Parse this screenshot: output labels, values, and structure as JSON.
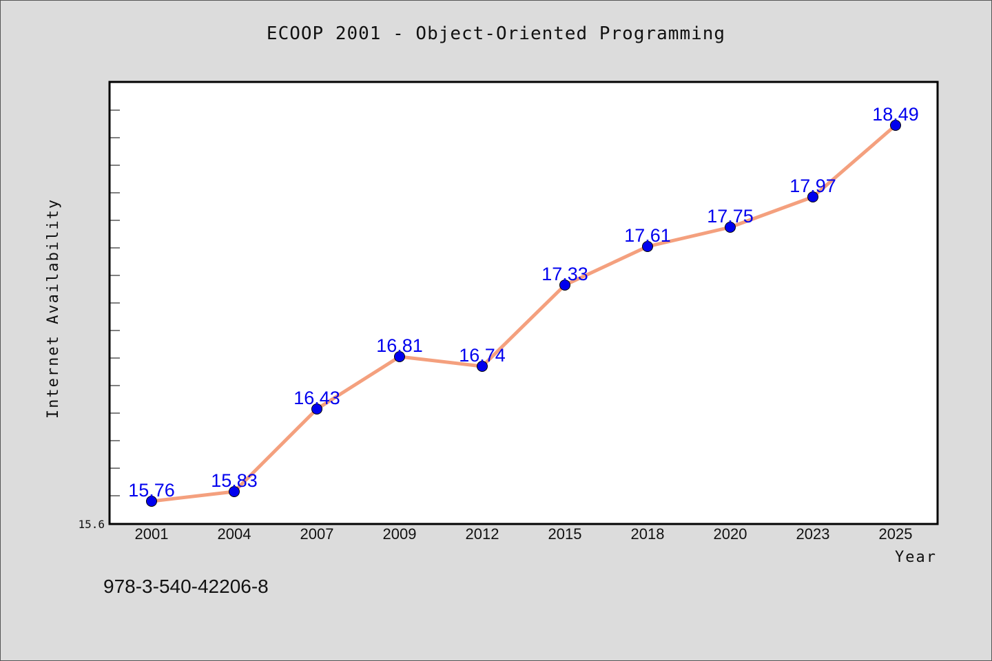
{
  "colors": {
    "background": "#dcdcdc",
    "plot_background": "#ffffff",
    "line": "#f4a07e",
    "marker": "#0000ee",
    "label": "#0000ee"
  },
  "isbn_text": "978-3-540-42206-8",
  "chart_data": {
    "type": "line",
    "title": "ECOOP 2001 - Object-Oriented Programming",
    "xlabel": "Year",
    "ylabel": "Internet Availability",
    "categories": [
      "2001",
      "2004",
      "2007",
      "2009",
      "2012",
      "2015",
      "2018",
      "2020",
      "2023",
      "2025"
    ],
    "series": [
      {
        "values": [
          15.76,
          15.83,
          16.43,
          16.81,
          16.74,
          17.33,
          17.61,
          17.75,
          17.97,
          18.49
        ]
      }
    ],
    "data_labels": [
      "15.76",
      "15.83",
      "16.43",
      "16.81",
      "16.74",
      "17.33",
      "17.61",
      "17.75",
      "17.97",
      "18.49"
    ],
    "ylim": [
      15.6,
      18.8
    ],
    "y_min_label": "15.6",
    "y_minor_tick_step": 0.2,
    "grid": false,
    "legend": "none"
  }
}
